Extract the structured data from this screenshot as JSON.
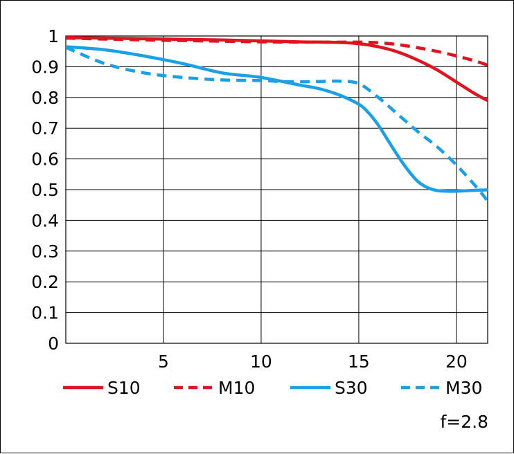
{
  "chart_data": {
    "type": "line",
    "title": "",
    "xlabel": "",
    "ylabel": "",
    "xlim": [
      0,
      21.6
    ],
    "ylim": [
      0,
      1
    ],
    "grid": true,
    "legend_position": "bottom",
    "x_ticks": [
      5,
      10,
      15,
      20
    ],
    "x_tick_labels": [
      "5",
      "10",
      "15",
      "20"
    ],
    "y_ticks": [
      0,
      0.1,
      0.2,
      0.3,
      0.4,
      0.5,
      0.6,
      0.7,
      0.8,
      0.9,
      1
    ],
    "y_tick_labels": [
      "0",
      "0.1",
      "0.2",
      "0.3",
      "0.4",
      "0.5",
      "0.6",
      "0.7",
      "0.8",
      "0.9",
      "1"
    ],
    "annotation": "f=2.8",
    "series": [
      {
        "name": "S10",
        "color": "#e0141e",
        "dash": "solid",
        "x": [
          0,
          2,
          4,
          6,
          8,
          10,
          12,
          14,
          15,
          16,
          17,
          18,
          19,
          20,
          21,
          21.6
        ],
        "y": [
          0.995,
          0.993,
          0.991,
          0.989,
          0.987,
          0.984,
          0.981,
          0.979,
          0.975,
          0.965,
          0.948,
          0.922,
          0.89,
          0.85,
          0.81,
          0.79
        ]
      },
      {
        "name": "M10",
        "color": "#e0141e",
        "dash": "dashed",
        "x": [
          0,
          2,
          4,
          6,
          8,
          10,
          12,
          14,
          15,
          16,
          17,
          18,
          19,
          20,
          21,
          21.6
        ],
        "y": [
          0.993,
          0.99,
          0.987,
          0.985,
          0.983,
          0.981,
          0.98,
          0.98,
          0.98,
          0.978,
          0.972,
          0.962,
          0.95,
          0.935,
          0.918,
          0.905
        ]
      },
      {
        "name": "S30",
        "color": "#1aa0e6",
        "dash": "solid",
        "x": [
          0,
          2,
          4,
          6,
          8,
          10,
          12,
          13,
          14,
          15,
          15.5,
          16,
          16.5,
          17,
          17.5,
          18,
          18.5,
          19,
          19.5,
          20,
          21,
          21.6
        ],
        "y": [
          0.965,
          0.955,
          0.935,
          0.91,
          0.88,
          0.865,
          0.84,
          0.828,
          0.808,
          0.778,
          0.75,
          0.71,
          0.66,
          0.61,
          0.565,
          0.528,
          0.507,
          0.497,
          0.495,
          0.495,
          0.498,
          0.499
        ]
      },
      {
        "name": "M30",
        "color": "#1aa0e6",
        "dash": "dashed",
        "x": [
          0,
          2,
          4,
          6,
          8,
          10,
          11,
          12,
          13,
          14,
          15,
          16,
          17,
          18,
          19,
          20,
          21,
          21.6
        ],
        "y": [
          0.963,
          0.91,
          0.88,
          0.865,
          0.857,
          0.855,
          0.852,
          0.851,
          0.852,
          0.853,
          0.845,
          0.8,
          0.745,
          0.69,
          0.64,
          0.58,
          0.51,
          0.463
        ]
      }
    ]
  }
}
